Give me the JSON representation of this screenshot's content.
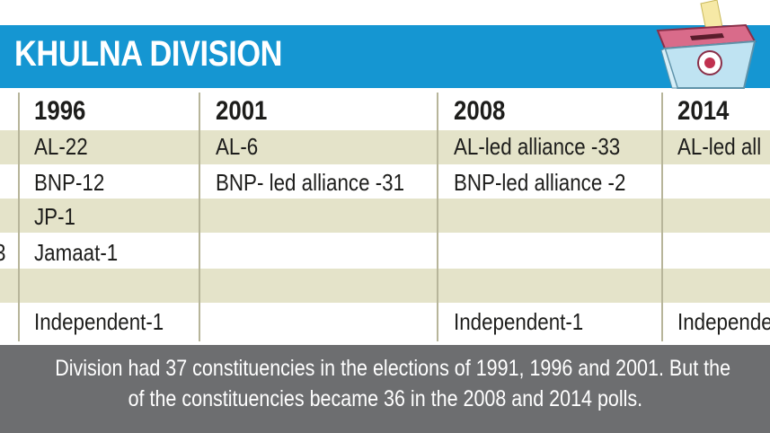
{
  "banner": {
    "title": "KHULNA DIVISION",
    "color": "#1596d2"
  },
  "ballot_icon": "ballot-box-icon",
  "years": [
    "1996",
    "2001",
    "2008",
    "2014"
  ],
  "columns": {
    "c1996": [
      "AL-22",
      "BNP-12",
      "JP-1",
      "Jamaat-1",
      "",
      "Independent-1"
    ],
    "c2001": [
      "AL-6",
      "BNP- led alliance -31",
      "",
      "",
      "",
      ""
    ],
    "c2008": [
      "AL-led alliance -33",
      "BNP-led alliance -2",
      "",
      "",
      "",
      "Independent-1"
    ],
    "c2014": [
      "AL-led all",
      "",
      "",
      "",
      "",
      "Independenc"
    ]
  },
  "left_edge_fragment": "3",
  "footnote": {
    "line1": "Division had 37 constituencies in the elections of 1991, 1996 and 2001. But the",
    "line2": "of the constituencies became 36 in the 2008 and 2014 polls."
  },
  "colors": {
    "row_shade": "#e4e3c9",
    "footnote_bg": "#6d6e70",
    "text": "#1d1d1b"
  }
}
